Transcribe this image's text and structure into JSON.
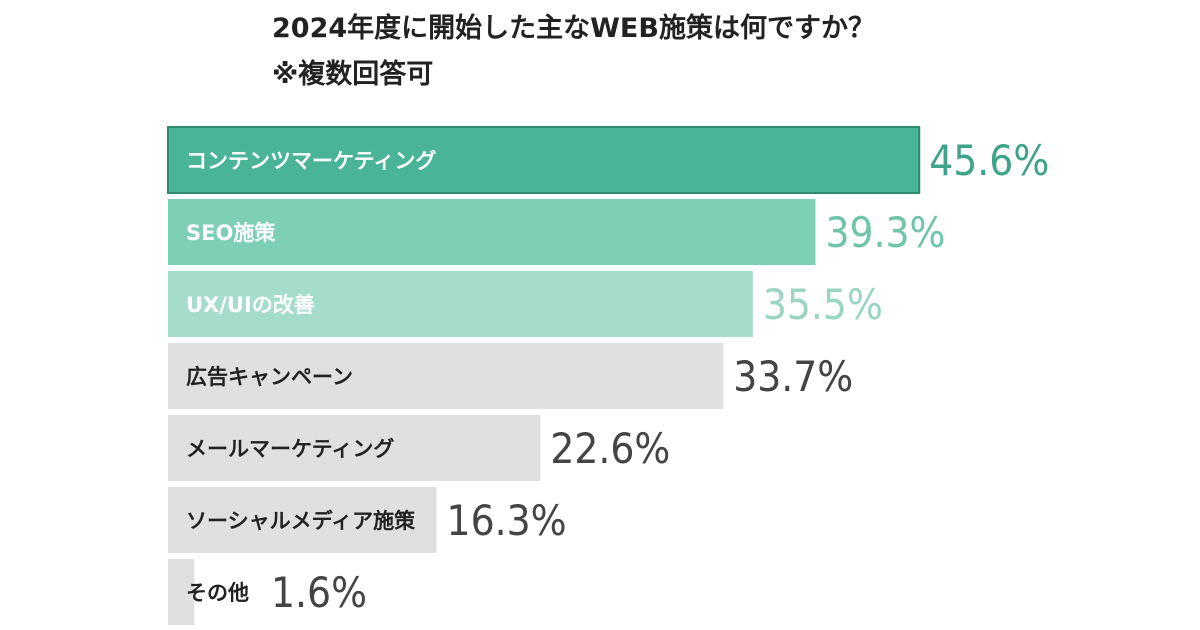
{
  "header": {
    "title": "2024年度に開始した主なWEB施策は何ですか？",
    "subtitle": "※複数回答可"
  },
  "chart_data": {
    "type": "bar",
    "orientation": "horizontal",
    "title": "2024年度に開始した主なWEB施策は何ですか？",
    "subtitle": "※複数回答可",
    "categories": [
      "コンテンツマーケティング",
      "SEO施策",
      "UX/UIの改善",
      "広告キャンペーン",
      "メールマーケティング",
      "ソーシャルメディア施策",
      "その他"
    ],
    "values": [
      45.6,
      39.3,
      35.5,
      33.7,
      22.6,
      16.3,
      1.6
    ],
    "value_labels": [
      "45.6%",
      "39.3%",
      "35.5%",
      "33.7%",
      "22.6%",
      "16.3%",
      "1.6%"
    ],
    "unit": "%",
    "xlim": [
      0,
      59
    ],
    "grid": false,
    "legend": "none",
    "bar_colors": [
      "#4ab498",
      "#7dcfb6",
      "#a6dccb",
      "#e0e0e0",
      "#e0e0e0",
      "#e0e0e0",
      "#e0e0e0"
    ],
    "value_colors": [
      "#3ea388",
      "#6fc4aa",
      "#9ad5c3",
      "#444444",
      "#444444",
      "#444444",
      "#444444"
    ],
    "category_label_colors": [
      "#ffffff",
      "#ffffff",
      "#ffffff",
      "#222222",
      "#222222",
      "#222222",
      "#222222"
    ],
    "top_bar_border_color": "#2f8a70"
  }
}
